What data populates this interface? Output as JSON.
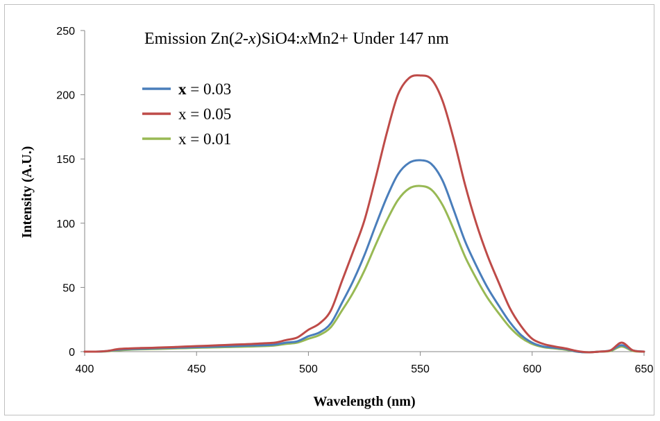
{
  "chart_data": {
    "type": "line",
    "title_parts": [
      "Emission Zn(",
      "2-x",
      ")SiO4:",
      "x",
      "Mn2+ Under 147 nm"
    ],
    "xlabel": "Wavelength (nm)",
    "ylabel": "Intensity (A.U.)",
    "xlim": [
      400,
      650
    ],
    "ylim": [
      0,
      250
    ],
    "xticks": [
      "400",
      "450",
      "500",
      "550",
      "600",
      "650"
    ],
    "yticks": [
      "0",
      "50",
      "100",
      "150",
      "200",
      "250"
    ],
    "grid": false,
    "legend_position": "top-left",
    "x": [
      400,
      405,
      410,
      415,
      420,
      425,
      430,
      435,
      440,
      445,
      450,
      455,
      460,
      465,
      470,
      475,
      480,
      485,
      490,
      495,
      500,
      505,
      510,
      515,
      520,
      525,
      530,
      535,
      540,
      545,
      550,
      555,
      560,
      565,
      570,
      575,
      580,
      585,
      590,
      595,
      600,
      605,
      610,
      615,
      620,
      625,
      630,
      635,
      640,
      645,
      650
    ],
    "series": [
      {
        "name_parts": [
          "x",
          " = 0.03"
        ],
        "color": "#4a7ebb",
        "values": [
          0,
          0,
          0.5,
          1.5,
          2,
          2.2,
          2.5,
          2.8,
          3,
          3.2,
          3.5,
          3.7,
          4,
          4.2,
          4.5,
          4.8,
          5,
          5.5,
          7,
          8,
          12,
          15,
          22,
          38,
          55,
          75,
          98,
          120,
          138,
          147,
          149,
          146,
          133,
          110,
          86,
          67,
          50,
          36,
          23,
          13,
          7,
          4,
          3,
          2,
          0,
          -0.5,
          0,
          1,
          5,
          1,
          0
        ]
      },
      {
        "name_parts": [
          "x = 0.05"
        ],
        "color": "#be4b48",
        "values": [
          0,
          0,
          0.5,
          2,
          2.5,
          2.8,
          3,
          3.3,
          3.6,
          4,
          4.3,
          4.6,
          5,
          5.3,
          5.7,
          6,
          6.5,
          7,
          9,
          11,
          17,
          22,
          32,
          55,
          78,
          102,
          135,
          170,
          200,
          213,
          215,
          212,
          195,
          165,
          130,
          100,
          75,
          54,
          34,
          20,
          10,
          6,
          4,
          2.5,
          0.5,
          -0.5,
          0,
          1,
          7,
          1,
          0
        ]
      },
      {
        "name_parts": [
          "x = 0.01"
        ],
        "color": "#98b954",
        "values": [
          0,
          0,
          0.3,
          1,
          1.5,
          1.8,
          2,
          2.2,
          2.5,
          2.7,
          3,
          3.2,
          3.4,
          3.6,
          3.8,
          4,
          4.3,
          4.8,
          6,
          7,
          10,
          13,
          19,
          32,
          46,
          63,
          83,
          102,
          118,
          127,
          129,
          126,
          114,
          95,
          74,
          57,
          42,
          30,
          19,
          11,
          6,
          3.5,
          2.5,
          1.5,
          0,
          -0.5,
          0,
          0.5,
          4,
          0.5,
          0
        ]
      }
    ]
  }
}
